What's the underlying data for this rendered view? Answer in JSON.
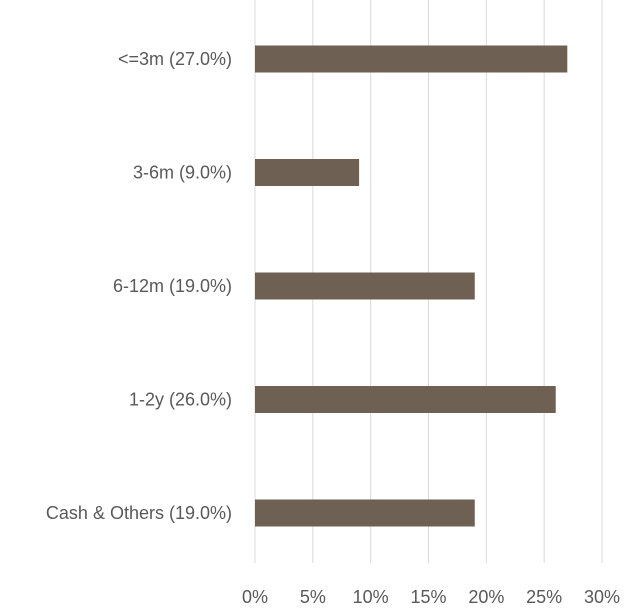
{
  "chart_data": {
    "type": "bar",
    "orientation": "horizontal",
    "categories": [
      "<=3m (27.0%)",
      "3-6m (9.0%)",
      "6-12m (19.0%)",
      "1-2y (26.0%)",
      "Cash & Others (19.0%)"
    ],
    "values": [
      27,
      9,
      19,
      26,
      19
    ],
    "x_ticks": [
      "0%",
      "5%",
      "10%",
      "15%",
      "20%",
      "25%",
      "30%"
    ],
    "xlim": [
      0,
      30
    ],
    "title": "",
    "xlabel": "",
    "ylabel": "",
    "grid": true,
    "legend": "none",
    "bar_color": "#6e6154",
    "grid_color": "#d9d9d9",
    "label_color": "#595959"
  }
}
